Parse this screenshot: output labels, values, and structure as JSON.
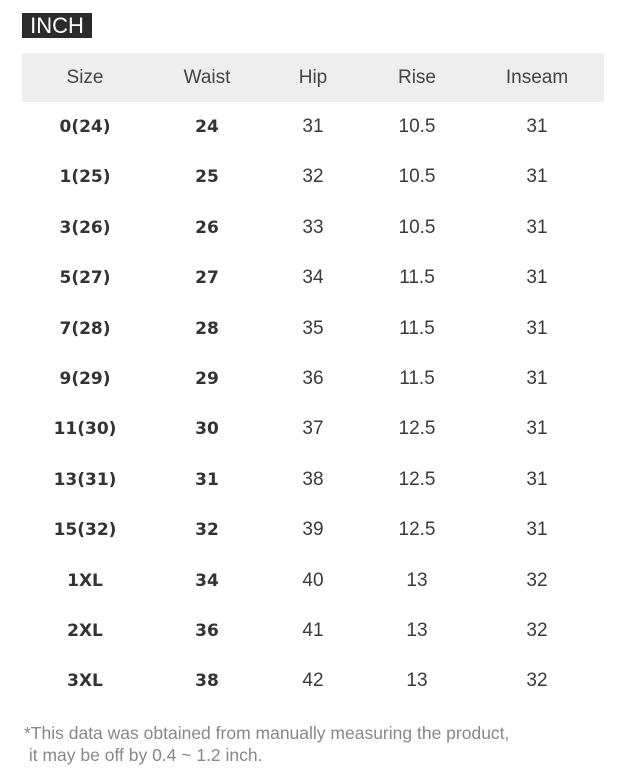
{
  "unit_label": "INCH",
  "table": {
    "headers": [
      "Size",
      "Waist",
      "Hip",
      "Rise",
      "Inseam"
    ],
    "rows": [
      [
        "0(24)",
        "24",
        "31",
        "10.5",
        "31"
      ],
      [
        "1(25)",
        "25",
        "32",
        "10.5",
        "31"
      ],
      [
        "3(26)",
        "26",
        "33",
        "10.5",
        "31"
      ],
      [
        "5(27)",
        "27",
        "34",
        "11.5",
        "31"
      ],
      [
        "7(28)",
        "28",
        "35",
        "11.5",
        "31"
      ],
      [
        "9(29)",
        "29",
        "36",
        "11.5",
        "31"
      ],
      [
        "11(30)",
        "30",
        "37",
        "12.5",
        "31"
      ],
      [
        "13(31)",
        "31",
        "38",
        "12.5",
        "31"
      ],
      [
        "15(32)",
        "32",
        "39",
        "12.5",
        "31"
      ],
      [
        "1XL",
        "34",
        "40",
        "13",
        "32"
      ],
      [
        "2XL",
        "36",
        "41",
        "13",
        "32"
      ],
      [
        "3XL",
        "38",
        "42",
        "13",
        "32"
      ]
    ]
  },
  "note_line1": "*This data was obtained from manually measuring the product,",
  "note_line2": " it may be off by 0.4 ~ 1.2 inch."
}
